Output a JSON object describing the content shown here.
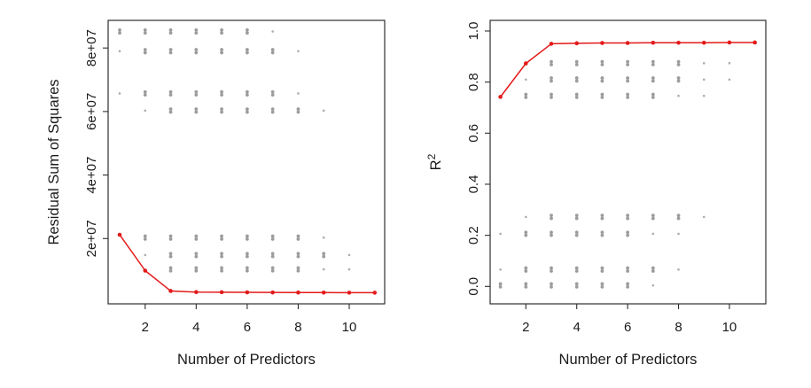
{
  "figure": {
    "background": "#ffffff",
    "description": "Best subset selection: residual sum of squares and R-squared versus number of predictors"
  },
  "palette": {
    "best_line_red": "#e31a1a",
    "scatter_gray": "#979797",
    "axis_color": "#2e2e2e",
    "text_color": "#1a1a1a"
  },
  "chart_data": [
    {
      "name": "rss",
      "type": "scatter",
      "title": "",
      "xlabel": "Number of Predictors",
      "ylabel": "Residual Sum of Squares",
      "xlim": [
        0.548,
        11.39
      ],
      "ylim": [
        -560000,
        88700000
      ],
      "grid": false,
      "legend": "none",
      "xticks": [
        2,
        4,
        6,
        8,
        10
      ],
      "xtick_labels": [
        "2",
        "4",
        "6",
        "8",
        "10"
      ],
      "yticks": [
        20000000,
        40000000,
        60000000,
        80000000
      ],
      "ytick_labels": [
        "2e+07",
        "4e+07",
        "6e+07",
        "8e+07"
      ],
      "series": [
        {
          "name": "all-subsets-rss",
          "kind": "cluster-scatter",
          "rows": [
            {
              "y": 85200000,
              "points": [
                [
                  1,
                  2
                ],
                [
                  2,
                  2
                ],
                [
                  3,
                  2
                ],
                [
                  4,
                  2
                ],
                [
                  5,
                  2
                ],
                [
                  6,
                  2
                ],
                [
                  7,
                  1
                ]
              ]
            },
            {
              "y": 79000000,
              "points": [
                [
                  1,
                  1
                ],
                [
                  2,
                  2
                ],
                [
                  3,
                  2
                ],
                [
                  4,
                  2
                ],
                [
                  5,
                  2
                ],
                [
                  6,
                  2
                ],
                [
                  7,
                  2
                ],
                [
                  8,
                  1
                ]
              ]
            },
            {
              "y": 65700000,
              "points": [
                [
                  1,
                  1
                ],
                [
                  2,
                  2
                ],
                [
                  3,
                  2
                ],
                [
                  4,
                  2
                ],
                [
                  5,
                  2
                ],
                [
                  6,
                  2
                ],
                [
                  7,
                  2
                ],
                [
                  8,
                  1
                ]
              ]
            },
            {
              "y": 60300000,
              "points": [
                [
                  2,
                  1
                ],
                [
                  3,
                  2
                ],
                [
                  4,
                  2
                ],
                [
                  5,
                  2
                ],
                [
                  6,
                  2
                ],
                [
                  7,
                  2
                ],
                [
                  8,
                  2
                ],
                [
                  9,
                  1
                ]
              ]
            },
            {
              "y": 20300000,
              "points": [
                [
                  2,
                  2
                ],
                [
                  3,
                  2
                ],
                [
                  4,
                  2
                ],
                [
                  5,
                  2
                ],
                [
                  6,
                  2
                ],
                [
                  7,
                  2
                ],
                [
                  8,
                  2
                ],
                [
                  9,
                  1
                ]
              ]
            },
            {
              "y": 14800000,
              "points": [
                [
                  2,
                  1
                ],
                [
                  3,
                  2
                ],
                [
                  4,
                  2
                ],
                [
                  5,
                  2
                ],
                [
                  6,
                  2
                ],
                [
                  7,
                  2
                ],
                [
                  8,
                  2
                ],
                [
                  9,
                  2
                ],
                [
                  10,
                  1
                ]
              ]
            },
            {
              "y": 10300000,
              "points": [
                [
                  3,
                  2
                ],
                [
                  4,
                  2
                ],
                [
                  5,
                  2
                ],
                [
                  6,
                  2
                ],
                [
                  7,
                  2
                ],
                [
                  8,
                  2
                ],
                [
                  9,
                  1
                ],
                [
                  10,
                  1
                ]
              ]
            }
          ]
        },
        {
          "name": "best-subset-rss",
          "kind": "line-points",
          "x": [
            1,
            2,
            3,
            4,
            5,
            6,
            7,
            8,
            9,
            10,
            11
          ],
          "y": [
            21200000,
            9900000,
            3500000,
            3150000,
            3100000,
            3050000,
            3020000,
            3000000,
            2980000,
            2960000,
            2950000
          ]
        }
      ]
    },
    {
      "name": "r2",
      "type": "scatter",
      "title": "",
      "xlabel": "Number of Predictors",
      "ylabel": "R^2",
      "xlim": [
        0.596,
        11.43
      ],
      "ylim": [
        -0.0683,
        1.0416
      ],
      "grid": false,
      "legend": "none",
      "xticks": [
        2,
        4,
        6,
        8,
        10
      ],
      "xtick_labels": [
        "2",
        "4",
        "6",
        "8",
        "10"
      ],
      "yticks": [
        0,
        0.2,
        0.4,
        0.6,
        0.8,
        1.0
      ],
      "ytick_labels": [
        "0.0",
        "0.2",
        "0.4",
        "0.6",
        "0.8",
        "1.0"
      ],
      "series": [
        {
          "name": "all-subsets-r2",
          "kind": "cluster-scatter",
          "rows": [
            {
              "y": 0.874,
              "points": [
                [
                  3,
                  2
                ],
                [
                  4,
                  2
                ],
                [
                  5,
                  2
                ],
                [
                  6,
                  2
                ],
                [
                  7,
                  2
                ],
                [
                  8,
                  2
                ],
                [
                  9,
                  1
                ],
                [
                  10,
                  1
                ]
              ]
            },
            {
              "y": 0.81,
              "points": [
                [
                  2,
                  1
                ],
                [
                  3,
                  2
                ],
                [
                  4,
                  2
                ],
                [
                  5,
                  2
                ],
                [
                  6,
                  2
                ],
                [
                  7,
                  2
                ],
                [
                  8,
                  2
                ],
                [
                  9,
                  1
                ],
                [
                  10,
                  1
                ]
              ]
            },
            {
              "y": 0.746,
              "points": [
                [
                  2,
                  2
                ],
                [
                  3,
                  2
                ],
                [
                  4,
                  2
                ],
                [
                  5,
                  2
                ],
                [
                  6,
                  2
                ],
                [
                  7,
                  2
                ],
                [
                  8,
                  1
                ],
                [
                  9,
                  1
                ]
              ]
            },
            {
              "y": 0.272,
              "points": [
                [
                  2,
                  1
                ],
                [
                  3,
                  2
                ],
                [
                  4,
                  2
                ],
                [
                  5,
                  2
                ],
                [
                  6,
                  2
                ],
                [
                  7,
                  2
                ],
                [
                  8,
                  2
                ],
                [
                  9,
                  1
                ]
              ]
            },
            {
              "y": 0.206,
              "points": [
                [
                  1,
                  1
                ],
                [
                  2,
                  2
                ],
                [
                  3,
                  2
                ],
                [
                  4,
                  2
                ],
                [
                  5,
                  2
                ],
                [
                  6,
                  2
                ],
                [
                  7,
                  1
                ],
                [
                  8,
                  1
                ]
              ]
            },
            {
              "y": 0.066,
              "points": [
                [
                  1,
                  1
                ],
                [
                  2,
                  2
                ],
                [
                  3,
                  2
                ],
                [
                  4,
                  2
                ],
                [
                  5,
                  2
                ],
                [
                  6,
                  2
                ],
                [
                  7,
                  2
                ],
                [
                  8,
                  1
                ]
              ]
            },
            {
              "y": 0.004,
              "points": [
                [
                  1,
                  2
                ],
                [
                  2,
                  2
                ],
                [
                  3,
                  2
                ],
                [
                  4,
                  2
                ],
                [
                  5,
                  2
                ],
                [
                  6,
                  2
                ],
                [
                  7,
                  1
                ]
              ]
            }
          ]
        },
        {
          "name": "best-subset-r2",
          "kind": "line-points",
          "x": [
            1,
            2,
            3,
            4,
            5,
            6,
            7,
            8,
            9,
            10,
            11
          ],
          "y": [
            0.742,
            0.873,
            0.95,
            0.952,
            0.953,
            0.953,
            0.954,
            0.954,
            0.954,
            0.955,
            0.955
          ]
        }
      ]
    }
  ]
}
